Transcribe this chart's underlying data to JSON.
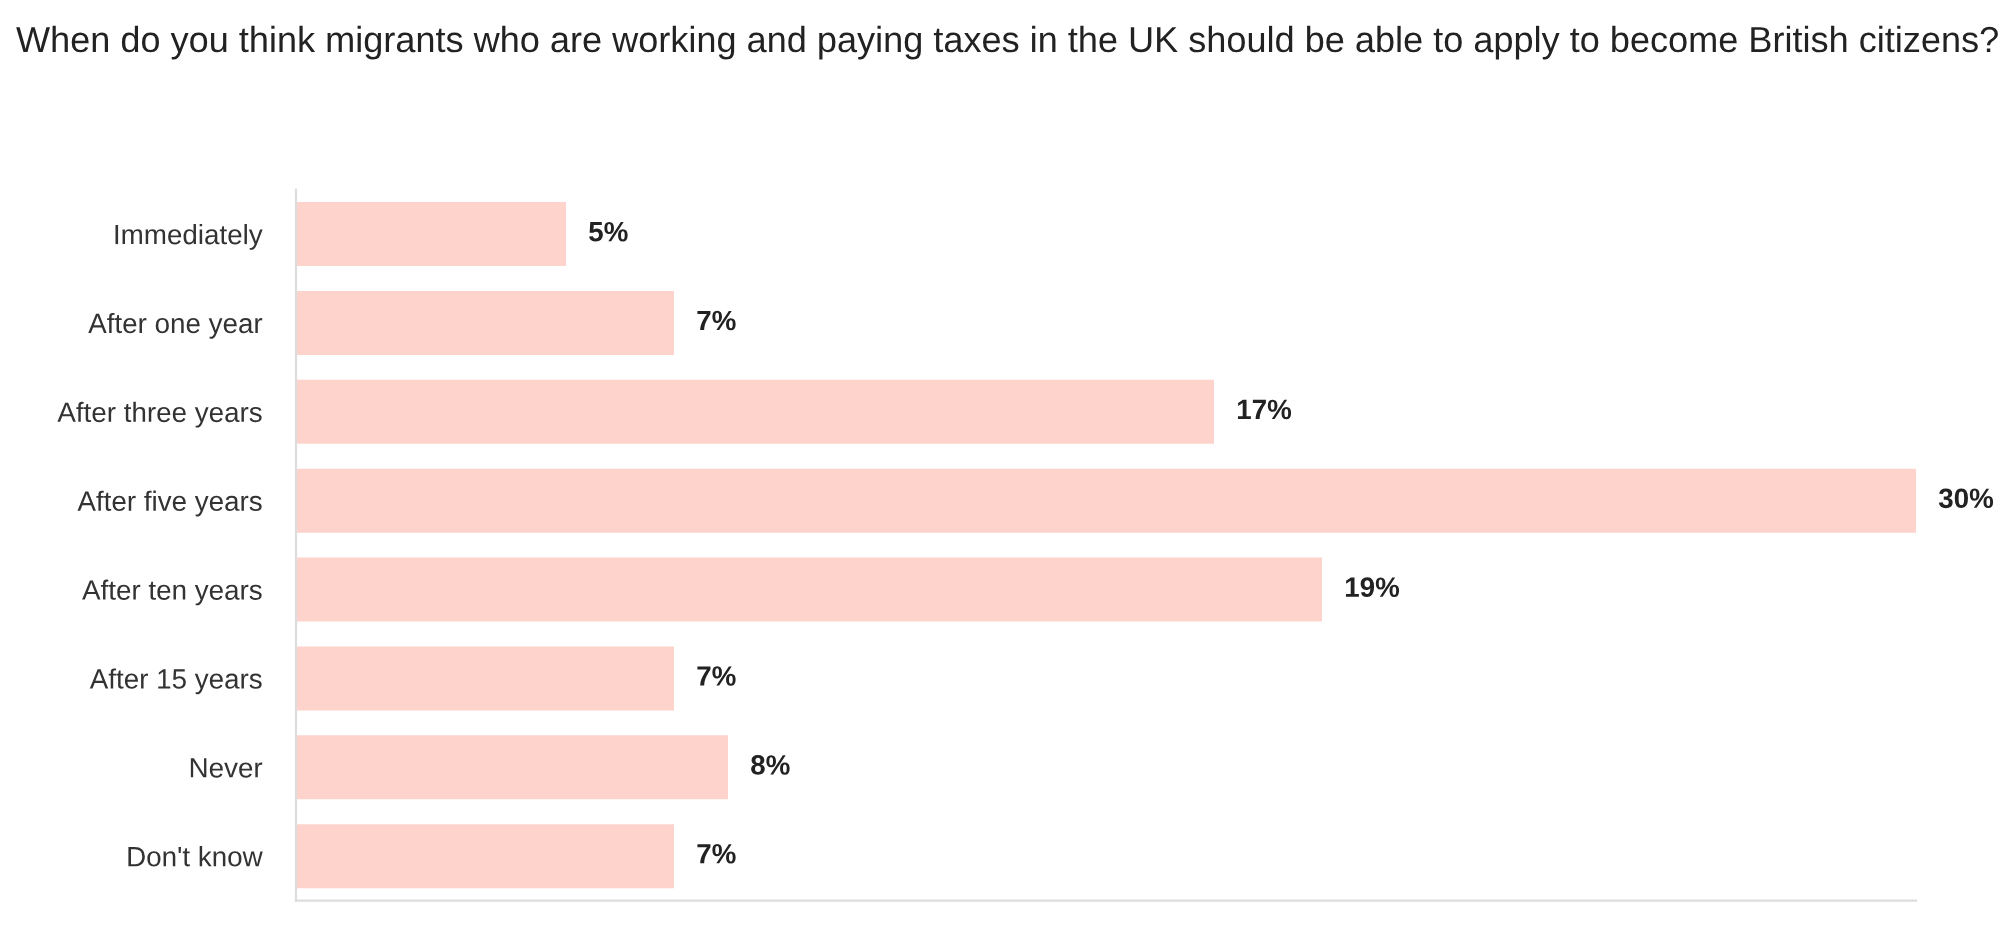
{
  "chart_data": {
    "type": "bar",
    "orientation": "horizontal",
    "title": "When do you think migrants who are working and paying taxes in the UK should be able to apply to become British citizens?",
    "categories": [
      "Immediately",
      "After one year",
      "After three years",
      "After five years",
      "After ten years",
      "After 15 years",
      "Never",
      "Don't know"
    ],
    "values": [
      5,
      7,
      17,
      30,
      19,
      7,
      8,
      7
    ],
    "value_labels": [
      "5%",
      "7%",
      "17%",
      "30%",
      "19%",
      "7%",
      "8%",
      "7%"
    ],
    "color": "#fdd3cc",
    "grid": false,
    "legend": false
  }
}
